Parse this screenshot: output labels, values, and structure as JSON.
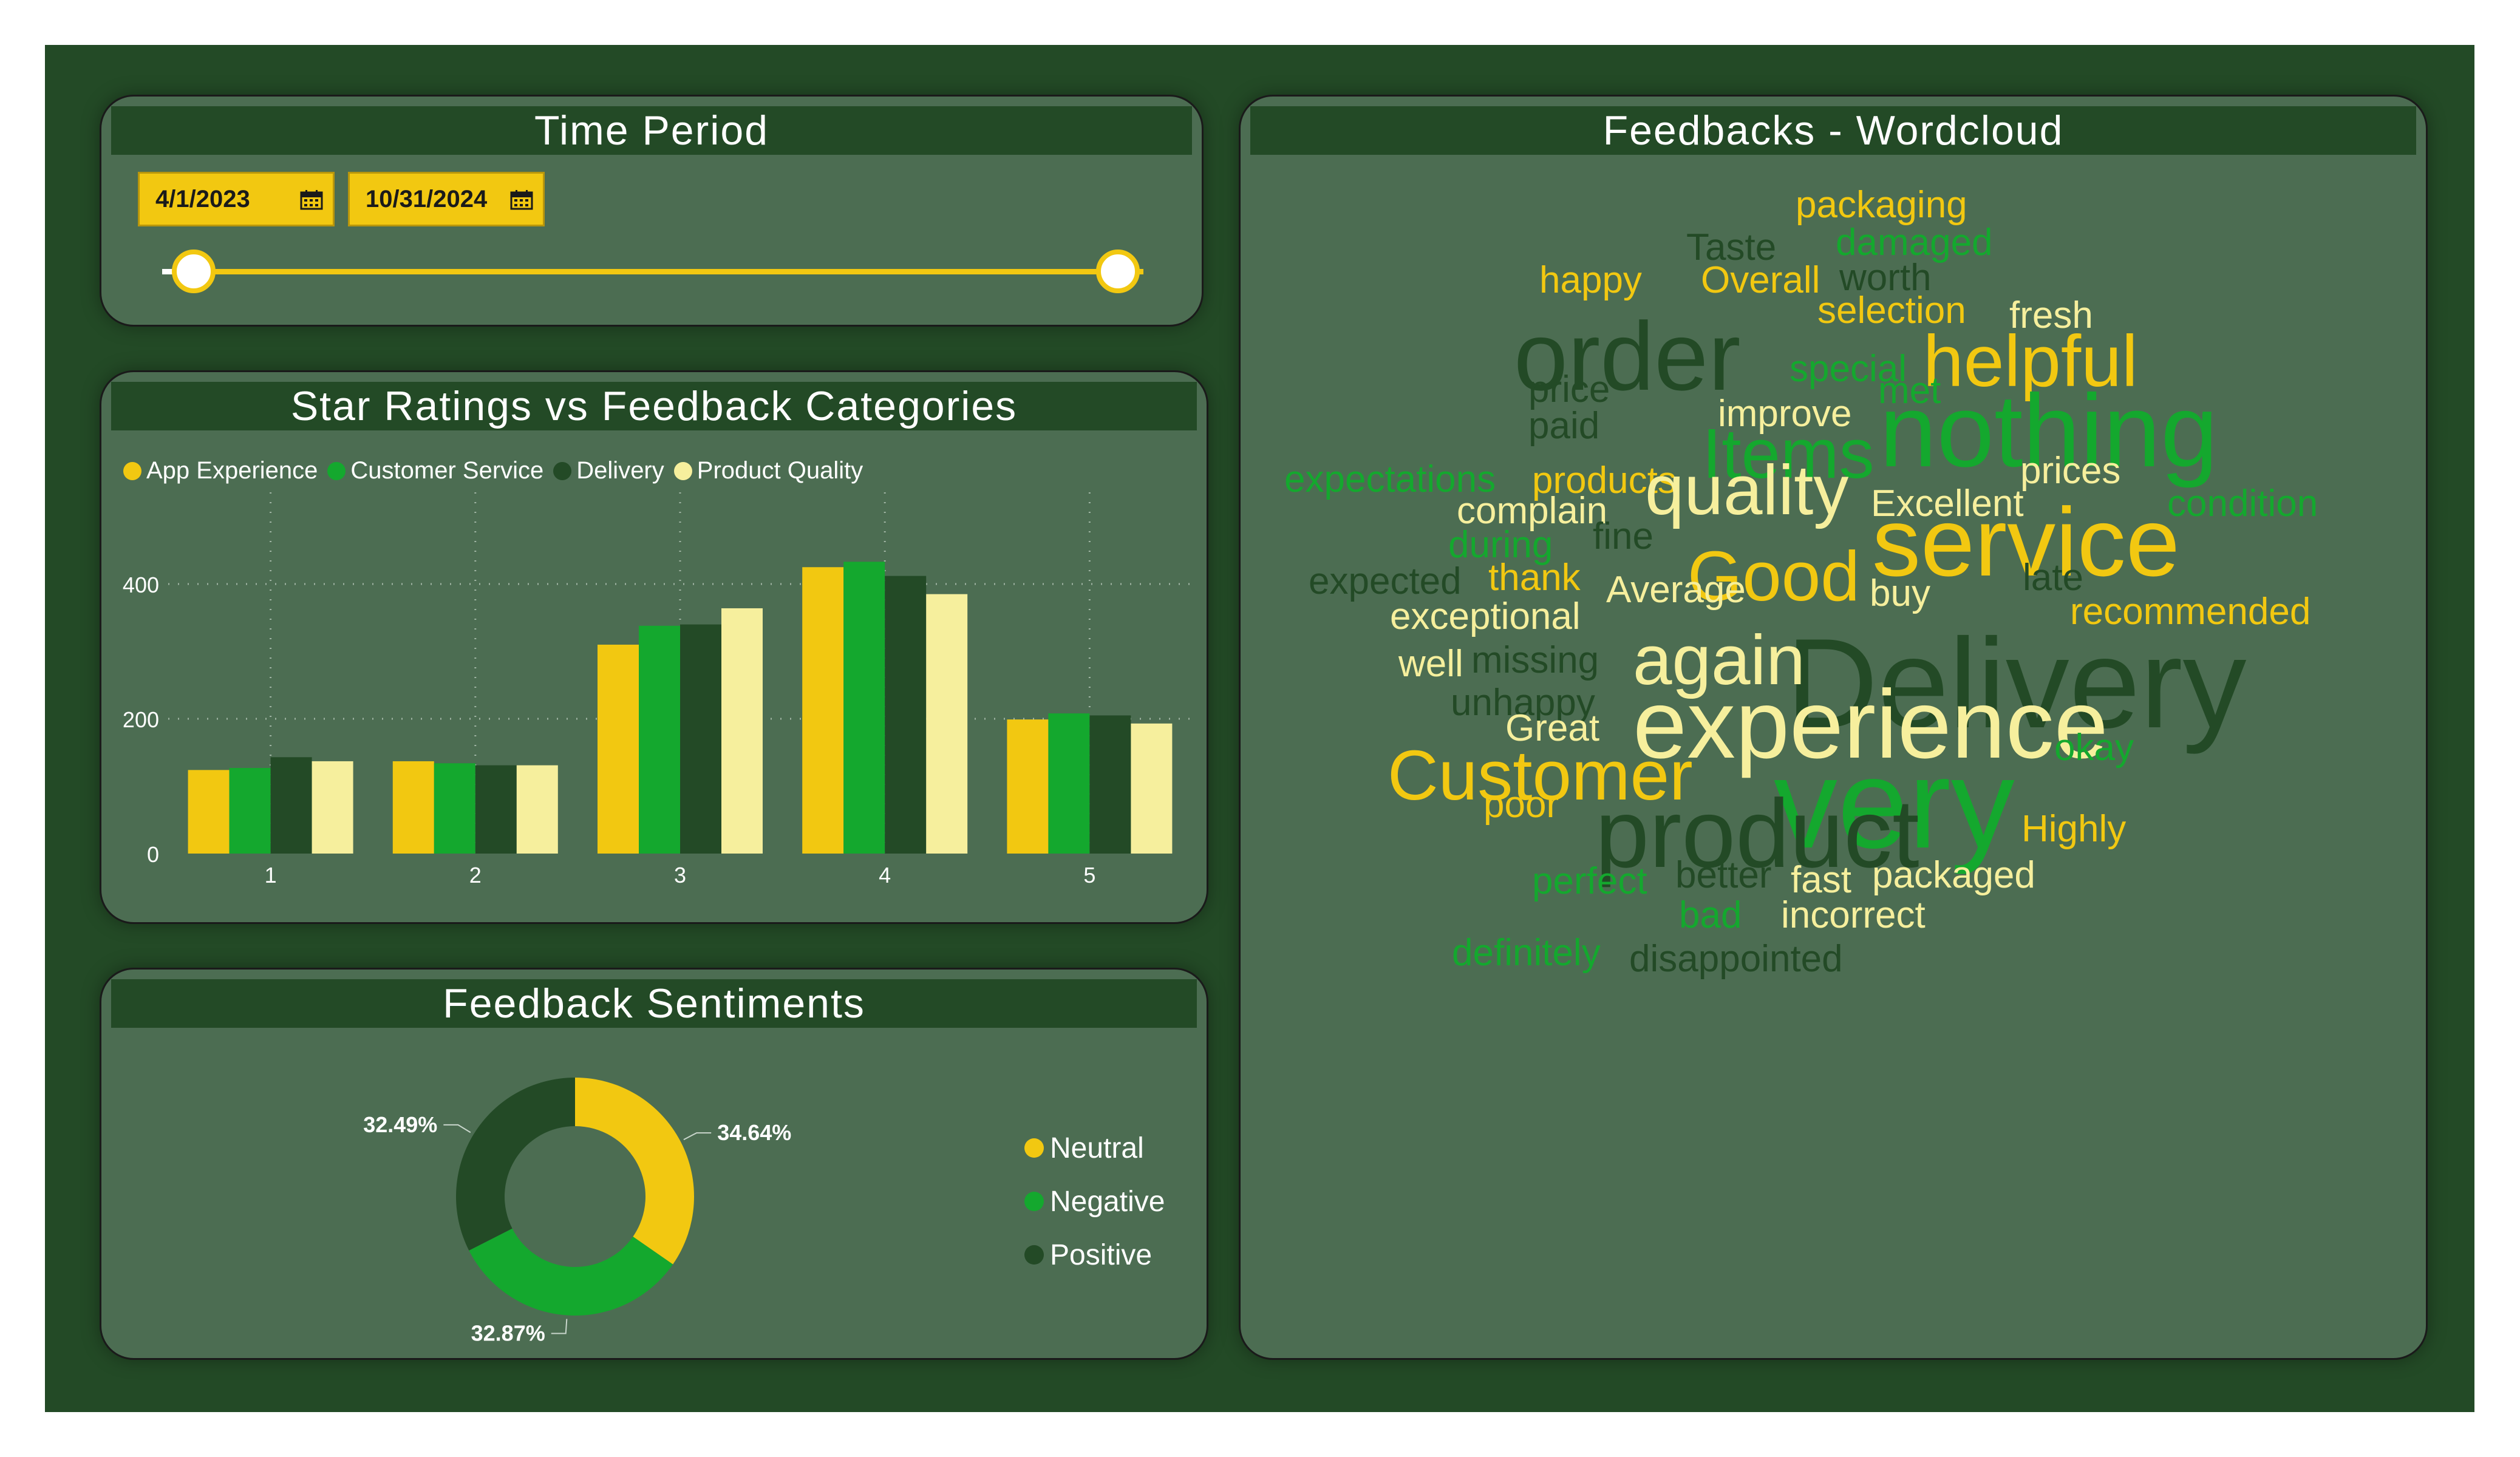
{
  "time_period": {
    "title": "Time Period",
    "start_date": "4/1/2023",
    "end_date": "10/31/2024"
  },
  "bar_panel": {
    "title": "Star Ratings vs Feedback Categories"
  },
  "sentiment_panel": {
    "title": "Feedback Sentiments"
  },
  "wordcloud_panel": {
    "title": "Feedbacks - Wordcloud"
  },
  "colors": {
    "App Experience": "#f2c811",
    "Customer Service": "#14a82e",
    "Delivery": "#234a26",
    "Product Quality": "#f6ef9d",
    "Neutral": "#f2c811",
    "Negative": "#14a82e",
    "Positive": "#234a26"
  },
  "chart_data": [
    {
      "type": "bar",
      "title": "Star Ratings vs Feedback Categories",
      "categories": [
        "1",
        "2",
        "3",
        "4",
        "5"
      ],
      "series": [
        {
          "name": "App Experience",
          "values": [
            124,
            137,
            310,
            425,
            199
          ]
        },
        {
          "name": "Customer Service",
          "values": [
            127,
            134,
            338,
            433,
            208
          ]
        },
        {
          "name": "Delivery",
          "values": [
            143,
            131,
            340,
            412,
            205
          ]
        },
        {
          "name": "Product Quality",
          "values": [
            137,
            131,
            364,
            385,
            193
          ]
        }
      ],
      "yticks": [
        0,
        200,
        400
      ],
      "ylim": [
        0,
        500
      ],
      "grid": true,
      "legend_position": "top-left"
    },
    {
      "type": "pie",
      "title": "Feedback Sentiments",
      "variant": "donut",
      "slices": [
        {
          "name": "Neutral",
          "value": 34.64,
          "label": "34.64%"
        },
        {
          "name": "Negative",
          "value": 32.87,
          "label": "32.87%"
        },
        {
          "name": "Positive",
          "value": 32.49,
          "label": "32.49%"
        }
      ],
      "legend_position": "right"
    }
  ],
  "wordcloud": [
    {
      "text": "packaging",
      "color": "#f2c811",
      "size": 1
    },
    {
      "text": "damaged",
      "color": "#14a82e",
      "size": 1
    },
    {
      "text": "Taste",
      "color": "#234a26",
      "size": 1
    },
    {
      "text": "happy",
      "color": "#f2c811",
      "size": 1
    },
    {
      "text": "Overall",
      "color": "#f2c811",
      "size": 1
    },
    {
      "text": "worth",
      "color": "#234a26",
      "size": 1
    },
    {
      "text": "selection",
      "color": "#f2c811",
      "size": 1
    },
    {
      "text": "fresh",
      "color": "#f6ef9d",
      "size": 1
    },
    {
      "text": "order",
      "color": "#234a26",
      "size": 3
    },
    {
      "text": "special",
      "color": "#14a82e",
      "size": 1
    },
    {
      "text": "helpful",
      "color": "#f2c811",
      "size": 2
    },
    {
      "text": "price",
      "color": "#234a26",
      "size": 1
    },
    {
      "text": "met",
      "color": "#14a82e",
      "size": 1
    },
    {
      "text": "improve",
      "color": "#f6ef9d",
      "size": 1
    },
    {
      "text": "paid",
      "color": "#234a26",
      "size": 1
    },
    {
      "text": "nothing",
      "color": "#14a82e",
      "size": 3
    },
    {
      "text": "Items",
      "color": "#14a82e",
      "size": 2
    },
    {
      "text": "expectations",
      "color": "#14a82e",
      "size": 1
    },
    {
      "text": "products",
      "color": "#f2c811",
      "size": 1
    },
    {
      "text": "prices",
      "color": "#f6ef9d",
      "size": 1
    },
    {
      "text": "complain",
      "color": "#f6ef9d",
      "size": 1
    },
    {
      "text": "quality",
      "color": "#f6ef9d",
      "size": 2
    },
    {
      "text": "Excellent",
      "color": "#f6ef9d",
      "size": 1
    },
    {
      "text": "condition",
      "color": "#14a82e",
      "size": 1
    },
    {
      "text": "during",
      "color": "#14a82e",
      "size": 1
    },
    {
      "text": "fine",
      "color": "#234a26",
      "size": 1
    },
    {
      "text": "service",
      "color": "#f2c811",
      "size": 3
    },
    {
      "text": "Good",
      "color": "#f2c811",
      "size": 2
    },
    {
      "text": "expected",
      "color": "#234a26",
      "size": 1
    },
    {
      "text": "thank",
      "color": "#f2c811",
      "size": 1
    },
    {
      "text": "late",
      "color": "#234a26",
      "size": 1
    },
    {
      "text": "Average",
      "color": "#f6ef9d",
      "size": 1
    },
    {
      "text": "buy",
      "color": "#f6ef9d",
      "size": 1
    },
    {
      "text": "recommended",
      "color": "#f2c811",
      "size": 1
    },
    {
      "text": "exceptional",
      "color": "#f6ef9d",
      "size": 1
    },
    {
      "text": "Delivery",
      "color": "#234a26",
      "size": 4
    },
    {
      "text": "missing",
      "color": "#234a26",
      "size": 1
    },
    {
      "text": "again",
      "color": "#f6ef9d",
      "size": 2
    },
    {
      "text": "well",
      "color": "#f6ef9d",
      "size": 1
    },
    {
      "text": "unhappy",
      "color": "#234a26",
      "size": 1
    },
    {
      "text": "experience",
      "color": "#f6ef9d",
      "size": 3
    },
    {
      "text": "Great",
      "color": "#f6ef9d",
      "size": 1
    },
    {
      "text": "Customer",
      "color": "#f2c811",
      "size": 2
    },
    {
      "text": "very",
      "color": "#14a82e",
      "size": 4
    },
    {
      "text": "okay",
      "color": "#14a82e",
      "size": 1
    },
    {
      "text": "poor",
      "color": "#f2c811",
      "size": 1
    },
    {
      "text": "product",
      "color": "#234a26",
      "size": 3
    },
    {
      "text": "Highly",
      "color": "#f2c811",
      "size": 1
    },
    {
      "text": "perfect",
      "color": "#14a82e",
      "size": 1
    },
    {
      "text": "better",
      "color": "#234a26",
      "size": 1
    },
    {
      "text": "fast",
      "color": "#f6ef9d",
      "size": 1
    },
    {
      "text": "packaged",
      "color": "#f6ef9d",
      "size": 1
    },
    {
      "text": "bad",
      "color": "#14a82e",
      "size": 1
    },
    {
      "text": "incorrect",
      "color": "#f6ef9d",
      "size": 1
    },
    {
      "text": "definitely",
      "color": "#14a82e",
      "size": 1
    },
    {
      "text": "disappointed",
      "color": "#234a26",
      "size": 1
    }
  ]
}
